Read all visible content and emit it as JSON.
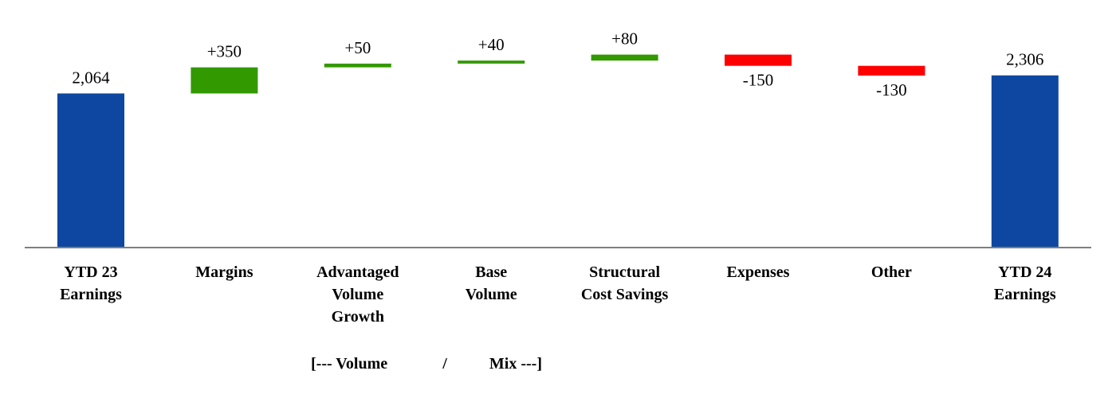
{
  "chart_data": {
    "type": "waterfall",
    "title": "",
    "xlabel": "",
    "ylabel": "",
    "ylim": [
      0,
      2400
    ],
    "grid": false,
    "legend": "none",
    "colors": {
      "total": "#0D47A1",
      "increase": "#339900",
      "decrease": "#FF0000",
      "axis": "#7F7F7F"
    },
    "bars": [
      {
        "category_lines": [
          "YTD 23",
          "Earnings"
        ],
        "kind": "total",
        "value": 2064,
        "label": "2,064"
      },
      {
        "category_lines": [
          "Margins"
        ],
        "kind": "increase",
        "value": 350,
        "label": "+350"
      },
      {
        "category_lines": [
          "Advantaged",
          "Volume",
          "Growth"
        ],
        "kind": "increase",
        "value": 50,
        "label": "+50"
      },
      {
        "category_lines": [
          "Base",
          "Volume"
        ],
        "kind": "increase",
        "value": 40,
        "label": "+40"
      },
      {
        "category_lines": [
          "Structural",
          "Cost Savings"
        ],
        "kind": "increase",
        "value": 80,
        "label": "+80"
      },
      {
        "category_lines": [
          "Expenses"
        ],
        "kind": "decrease",
        "value": -150,
        "label": "-150"
      },
      {
        "category_lines": [
          "Other"
        ],
        "kind": "decrease",
        "value": -130,
        "label": "-130"
      },
      {
        "category_lines": [
          "YTD 24",
          "Earnings"
        ],
        "kind": "total",
        "value": 2306,
        "label": "2,306"
      }
    ],
    "group_annotation": {
      "parts": [
        "[--- Volume",
        "/",
        "Mix ---]"
      ]
    }
  }
}
